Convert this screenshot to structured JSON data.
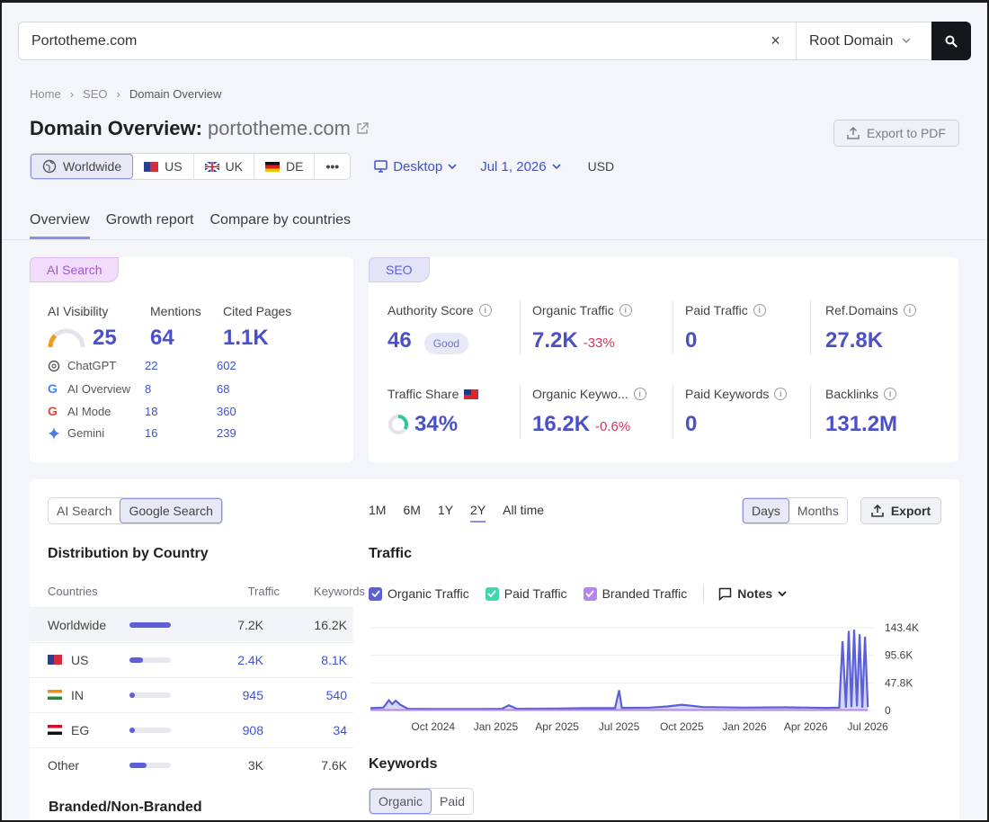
{
  "search": {
    "query": "Portotheme.com",
    "clear": "×",
    "scope": "Root Domain"
  },
  "breadcrumb": [
    "Home",
    "SEO",
    "Domain Overview"
  ],
  "header": {
    "title": "Domain Overview:",
    "domain": "portotheme.com",
    "export_pdf": "Export to PDF"
  },
  "filters": {
    "regions": [
      {
        "label": "Worldwide",
        "icon": "globe-icon"
      },
      {
        "label": "US",
        "icon": "flag-us-icon"
      },
      {
        "label": "UK",
        "icon": "flag-uk-icon"
      },
      {
        "label": "DE",
        "icon": "flag-de-icon"
      },
      {
        "label": "•••",
        "icon": "more-icon"
      }
    ],
    "device": "Desktop",
    "date": "Jul 1, 2026",
    "currency": "USD"
  },
  "tabs": [
    "Overview",
    "Growth report",
    "Compare by countries"
  ],
  "ai_card": {
    "chip": "AI Search",
    "visibility_label": "AI Visibility",
    "visibility_value": "25",
    "visibility_level": 0.25,
    "mentions_label": "Mentions",
    "mentions_value": "64",
    "cited_label": "Cited Pages",
    "cited_value": "1.1K",
    "rows": [
      {
        "name": "ChatGPT",
        "icon": "chatgpt-icon",
        "mentions": "22",
        "cited": "602"
      },
      {
        "name": "AI Overview",
        "icon": "google-icon",
        "mentions": "8",
        "cited": "68"
      },
      {
        "name": "AI Mode",
        "icon": "google-icon",
        "mentions": "18",
        "cited": "360"
      },
      {
        "name": "Gemini",
        "icon": "gemini-icon",
        "mentions": "16",
        "cited": "239"
      }
    ]
  },
  "seo_card": {
    "chip": "SEO",
    "metrics": [
      {
        "label": "Authority Score",
        "value": "46",
        "badge": "Good",
        "change": ""
      },
      {
        "label": "Organic Traffic",
        "value": "7.2K",
        "badge": "",
        "change": "-33%"
      },
      {
        "label": "Paid Traffic",
        "value": "0",
        "badge": "",
        "change": ""
      },
      {
        "label": "Ref.Domains",
        "value": "27.8K",
        "badge": "",
        "change": ""
      },
      {
        "label": "Traffic Share",
        "value": "34%",
        "badge": "",
        "change": "",
        "level": 0.34
      },
      {
        "label": "Organic Keywo...",
        "value": "16.2K",
        "badge": "",
        "change": "-0.6%"
      },
      {
        "label": "Paid Keywords",
        "value": "0",
        "badge": "",
        "change": ""
      },
      {
        "label": "Backlinks",
        "value": "131.2M",
        "badge": "",
        "change": ""
      }
    ]
  },
  "source_toggle": [
    "AI Search",
    "Google Search"
  ],
  "distribution": {
    "title": "Distribution by Country",
    "headers": [
      "Countries",
      "Traffic",
      "Keywords"
    ],
    "rows": [
      {
        "country": "Worldwide",
        "flag": "",
        "share": 1.0,
        "traffic": "7.2K",
        "keywords": "16.2K"
      },
      {
        "country": "US",
        "flag": "flag-us-icon",
        "share": 0.33,
        "traffic": "2.4K",
        "keywords": "8.1K"
      },
      {
        "country": "IN",
        "flag": "flag-in-icon",
        "share": 0.13,
        "traffic": "945",
        "keywords": "540"
      },
      {
        "country": "EG",
        "flag": "flag-eg-icon",
        "share": 0.13,
        "traffic": "908",
        "keywords": "34"
      },
      {
        "country": "Other",
        "flag": "",
        "share": 0.42,
        "traffic": "3K",
        "keywords": "7.6K"
      }
    ]
  },
  "branded_title": "Branded/Non-Branded",
  "periods": [
    "1M",
    "6M",
    "1Y",
    "2Y",
    "All time"
  ],
  "granularity": [
    "Days",
    "Months"
  ],
  "export_label": "Export",
  "traffic_title": "Traffic",
  "legend": [
    "Organic Traffic",
    "Paid Traffic",
    "Branded Traffic"
  ],
  "notes_label": "Notes",
  "keywords_title": "Keywords",
  "kw_toggle": [
    "Organic",
    "Paid"
  ],
  "colors": {
    "accent": "#4b50c8",
    "organic": "#5c5fd6",
    "paid": "#3fd6b0",
    "branded": "#b685ec",
    "negative": "#d0375b"
  },
  "chart_data": {
    "type": "area",
    "title": "Traffic",
    "x_ticks": [
      "Oct 2024",
      "Jan 2025",
      "Apr 2025",
      "Jul 2025",
      "Oct 2025",
      "Jan 2026",
      "Apr 2026",
      "Jul 2026"
    ],
    "y_ticks": [
      "0",
      "47.8K",
      "95.6K",
      "143.4K"
    ],
    "ylim": [
      0,
      143400
    ],
    "series": [
      {
        "name": "Organic Traffic",
        "points": [
          [
            "2024-07-01",
            4000
          ],
          [
            "2024-07-20",
            5000
          ],
          [
            "2024-07-28",
            18000
          ],
          [
            "2024-08-02",
            11000
          ],
          [
            "2024-08-07",
            17000
          ],
          [
            "2024-08-14",
            10000
          ],
          [
            "2024-08-25",
            3000
          ],
          [
            "2024-10-01",
            2500
          ],
          [
            "2024-12-01",
            2500
          ],
          [
            "2025-01-10",
            3000
          ],
          [
            "2025-01-20",
            9000
          ],
          [
            "2025-02-01",
            3000
          ],
          [
            "2025-04-01",
            3500
          ],
          [
            "2025-05-15",
            4000
          ],
          [
            "2025-06-25",
            4000
          ],
          [
            "2025-07-01",
            35000
          ],
          [
            "2025-07-05",
            4500
          ],
          [
            "2025-08-15",
            5000
          ],
          [
            "2025-09-10",
            7000
          ],
          [
            "2025-10-01",
            10000
          ],
          [
            "2025-11-01",
            6000
          ],
          [
            "2026-01-01",
            5000
          ],
          [
            "2026-03-01",
            5500
          ],
          [
            "2026-05-01",
            4500
          ],
          [
            "2026-05-20",
            5000
          ],
          [
            "2026-05-25",
            120000
          ],
          [
            "2026-05-30",
            5000
          ],
          [
            "2026-06-03",
            138000
          ],
          [
            "2026-06-07",
            6000
          ],
          [
            "2026-06-11",
            140000
          ],
          [
            "2026-06-15",
            7000
          ],
          [
            "2026-06-19",
            132000
          ],
          [
            "2026-06-23",
            5000
          ],
          [
            "2026-06-27",
            128000
          ],
          [
            "2026-07-01",
            6000
          ]
        ]
      },
      {
        "name": "Branded Traffic",
        "points": [
          [
            "2024-07-01",
            800
          ],
          [
            "2026-07-01",
            800
          ]
        ]
      }
    ]
  }
}
